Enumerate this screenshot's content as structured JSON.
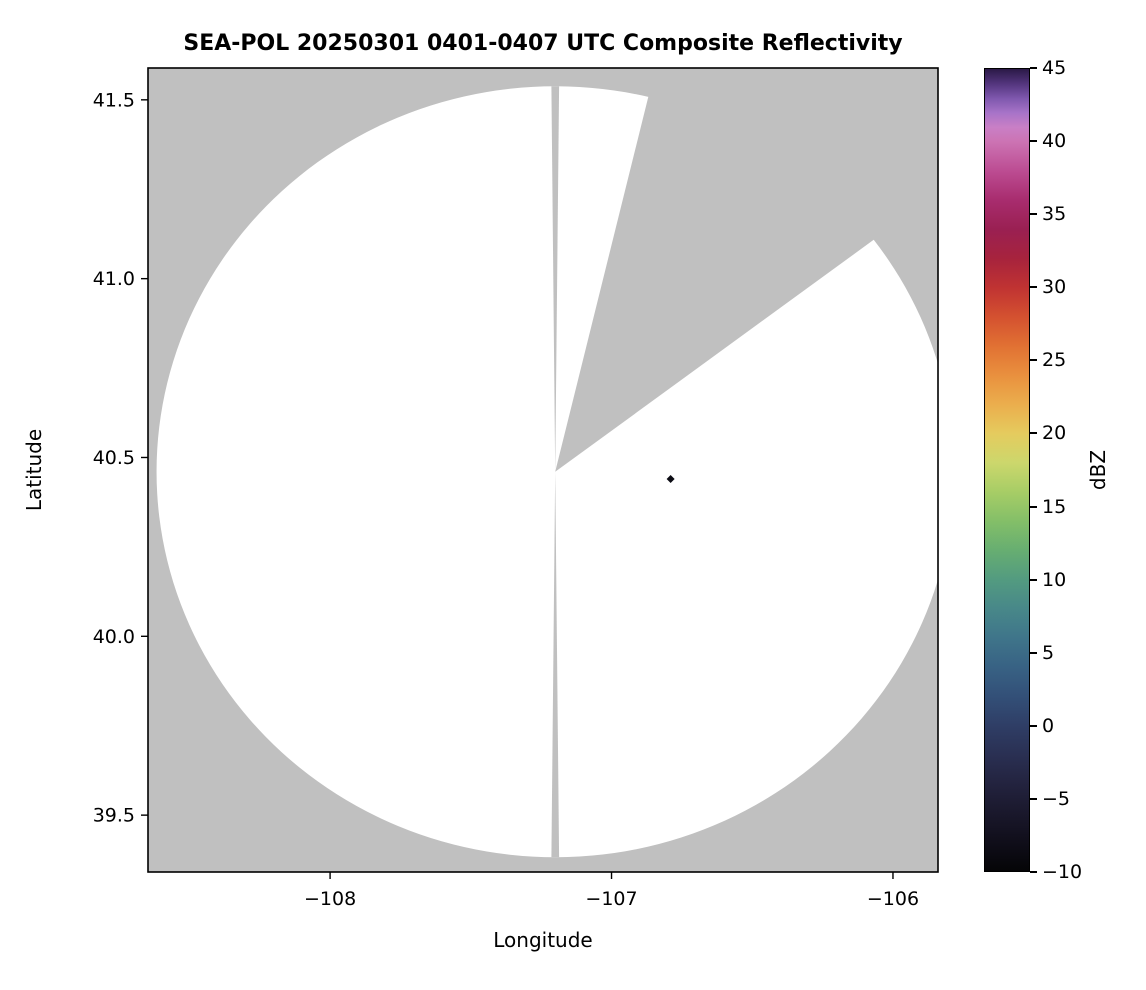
{
  "chart_data": {
    "type": "heatmap",
    "title": "SEA-POL 20250301 0401-0407 UTC Composite Reflectivity",
    "xlabel": "Longitude",
    "ylabel": "Latitude",
    "xlim": [
      -108.647,
      -105.84
    ],
    "ylim": [
      39.341,
      41.589
    ],
    "grid": false,
    "x_ticks": [
      {
        "v": -108,
        "label": "−108"
      },
      {
        "v": -107,
        "label": "−107"
      },
      {
        "v": -106,
        "label": "−106"
      }
    ],
    "y_ticks": [
      {
        "v": 41.5,
        "label": "41.5"
      },
      {
        "v": 41.0,
        "label": "41.0"
      },
      {
        "v": 40.5,
        "label": "40.5"
      },
      {
        "v": 40.0,
        "label": "40.0"
      },
      {
        "v": 39.5,
        "label": "39.5"
      }
    ],
    "no_data_color": "#c0c0c0",
    "scanned_color": "#ffffff",
    "radar": {
      "center_lon": -107.2,
      "center_lat": 40.46,
      "range_km": 120,
      "missing_sector_azimuth_deg": [
        13.5,
        53
      ],
      "thin_gap_azimuth_deg": [
        0,
        180
      ]
    },
    "echoes": [
      {
        "lon": -106.79,
        "lat": 40.44,
        "dbz": -8,
        "color": "#0c0c14"
      }
    ],
    "colorbar": {
      "label": "dBZ",
      "min": -10,
      "max": 45,
      "ticks": [
        {
          "v": 45,
          "label": "45"
        },
        {
          "v": 40,
          "label": "40"
        },
        {
          "v": 35,
          "label": "35"
        },
        {
          "v": 30,
          "label": "30"
        },
        {
          "v": 25,
          "label": "25"
        },
        {
          "v": 20,
          "label": "20"
        },
        {
          "v": 15,
          "label": "15"
        },
        {
          "v": 10,
          "label": "10"
        },
        {
          "v": 5,
          "label": "5"
        },
        {
          "v": 0,
          "label": "0"
        },
        {
          "v": -5,
          "label": "−5"
        },
        {
          "v": -10,
          "label": "−10"
        }
      ],
      "stops": [
        {
          "v": -10,
          "c": "#050507"
        },
        {
          "v": -8,
          "c": "#100e1a"
        },
        {
          "v": -6,
          "c": "#1a182c"
        },
        {
          "v": -4,
          "c": "#23233f"
        },
        {
          "v": -2,
          "c": "#2a3053"
        },
        {
          "v": 0,
          "c": "#2f3e66"
        },
        {
          "v": 2,
          "c": "#335078"
        },
        {
          "v": 4,
          "c": "#386284"
        },
        {
          "v": 6,
          "c": "#3f758a"
        },
        {
          "v": 8,
          "c": "#488889"
        },
        {
          "v": 10,
          "c": "#539b80"
        },
        {
          "v": 12,
          "c": "#67ae71"
        },
        {
          "v": 14,
          "c": "#84bf68"
        },
        {
          "v": 16,
          "c": "#a7cd66"
        },
        {
          "v": 18,
          "c": "#ccd76c"
        },
        {
          "v": 20,
          "c": "#e5cb5e"
        },
        {
          "v": 22,
          "c": "#ebae4d"
        },
        {
          "v": 24,
          "c": "#e9903e"
        },
        {
          "v": 26,
          "c": "#e17133"
        },
        {
          "v": 28,
          "c": "#d45130"
        },
        {
          "v": 30,
          "c": "#c03332"
        },
        {
          "v": 32,
          "c": "#a7233d"
        },
        {
          "v": 34,
          "c": "#9a2052"
        },
        {
          "v": 36,
          "c": "#a82c6e"
        },
        {
          "v": 38,
          "c": "#bc4c92"
        },
        {
          "v": 40,
          "c": "#cc73b3"
        },
        {
          "v": 41,
          "c": "#c97fc6"
        },
        {
          "v": 42,
          "c": "#a773c8"
        },
        {
          "v": 43,
          "c": "#7e57ad"
        },
        {
          "v": 44,
          "c": "#53357d"
        },
        {
          "v": 45,
          "c": "#2b1947"
        }
      ]
    }
  }
}
